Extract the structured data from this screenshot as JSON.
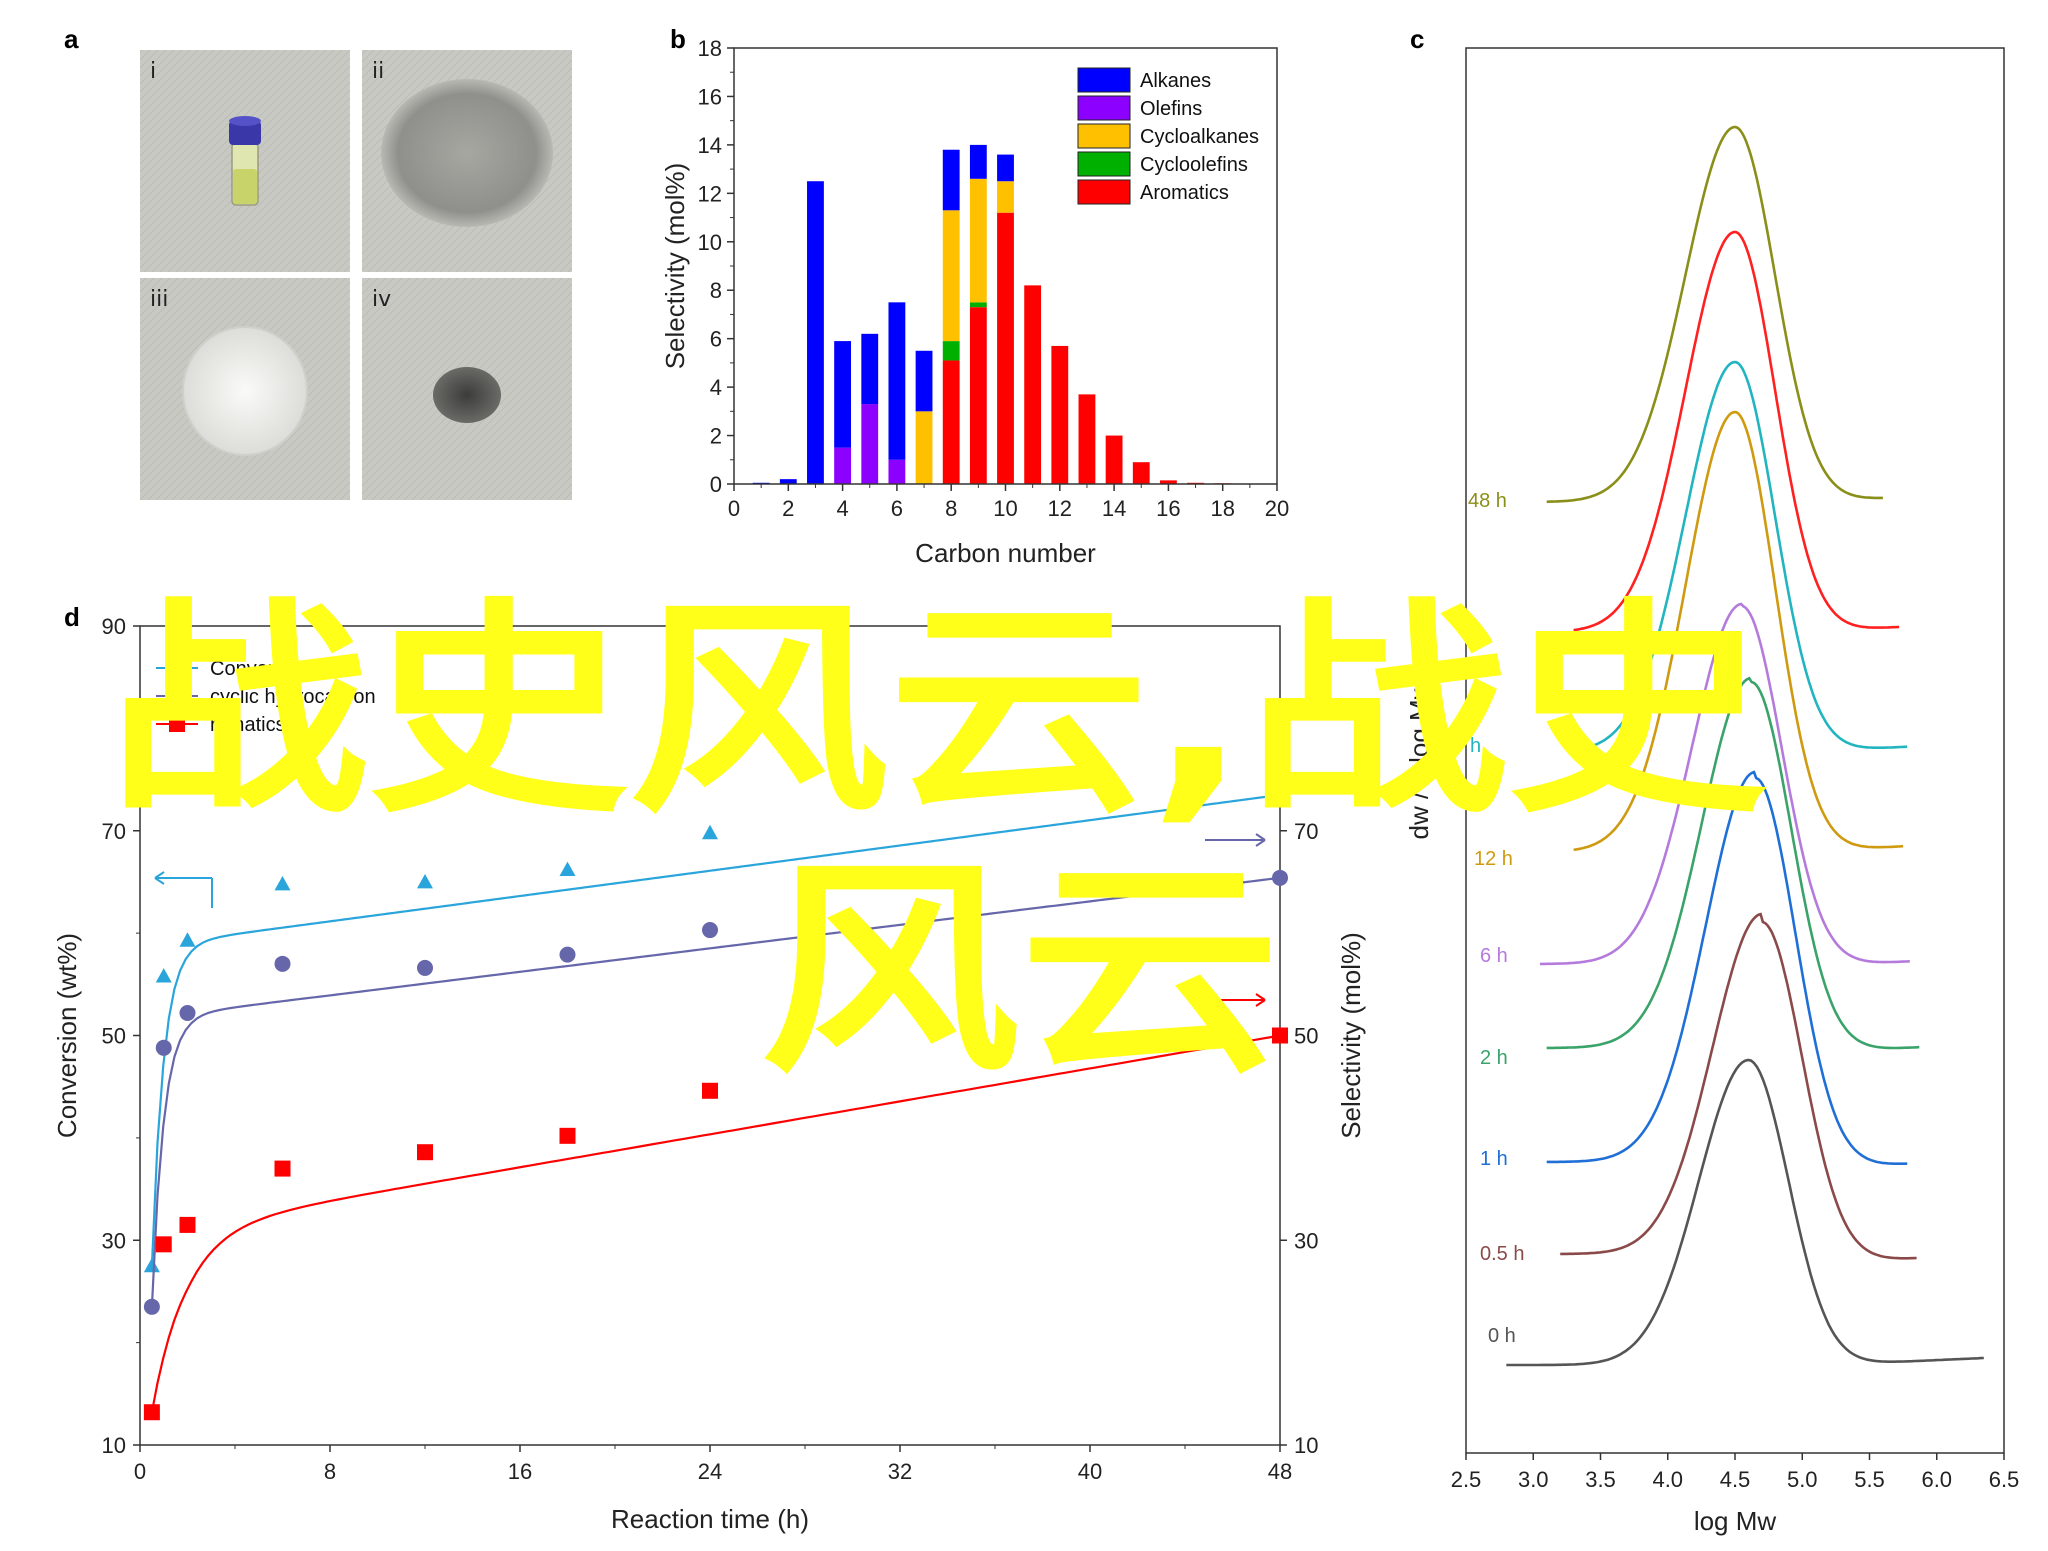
{
  "panels": {
    "a": {
      "letter": "a",
      "photos": [
        {
          "label": "i",
          "subject": "vial-with-yellow-liquid"
        },
        {
          "label": "ii",
          "subject": "grey-powder"
        },
        {
          "label": "iii",
          "subject": "white-pellet"
        },
        {
          "label": "iv",
          "subject": "dark-powder"
        }
      ]
    },
    "b": {
      "letter": "b"
    },
    "c": {
      "letter": "c"
    },
    "d": {
      "letter": "d"
    }
  },
  "watermark": {
    "line1": "战史风云,战史",
    "line2": "风云",
    "color": "#ffff1a"
  },
  "chart_data": [
    {
      "panel": "b",
      "type": "bar",
      "stacked": true,
      "xlabel": "Carbon number",
      "ylabel": "Selectivity (mol%)",
      "xlim": [
        0,
        20
      ],
      "ylim": [
        0,
        18
      ],
      "xticks": [
        0,
        2,
        4,
        6,
        8,
        10,
        12,
        14,
        16,
        18,
        20
      ],
      "yticks": [
        0,
        2,
        4,
        6,
        8,
        10,
        12,
        14,
        16,
        18
      ],
      "legend_position": "top-right",
      "categories": [
        1,
        2,
        3,
        4,
        5,
        6,
        7,
        8,
        9,
        10,
        11,
        12,
        13,
        14,
        15,
        16,
        17,
        18,
        19
      ],
      "series": [
        {
          "name": "Aromatics",
          "color": "#ff0000",
          "values": [
            0,
            0,
            0,
            0,
            0,
            0,
            0,
            5.1,
            7.3,
            11.2,
            8.2,
            5.7,
            3.7,
            2.0,
            0.9,
            0.15,
            0.05,
            0.03,
            0.02
          ]
        },
        {
          "name": "Cycloolefins",
          "color": "#00b000",
          "values": [
            0,
            0,
            0,
            0,
            0,
            0,
            0,
            0.8,
            0.2,
            0,
            0,
            0,
            0,
            0,
            0,
            0,
            0,
            0,
            0
          ]
        },
        {
          "name": "Cycloalkanes",
          "color": "#ffc000",
          "values": [
            0,
            0,
            0,
            0,
            0,
            0,
            3.0,
            5.4,
            5.1,
            1.3,
            0,
            0,
            0,
            0,
            0,
            0,
            0,
            0,
            0
          ]
        },
        {
          "name": "Olefins",
          "color": "#8b00ff",
          "values": [
            0,
            0,
            0,
            1.5,
            3.3,
            1.0,
            0,
            0,
            0,
            0,
            0,
            0,
            0,
            0,
            0,
            0,
            0,
            0,
            0
          ]
        },
        {
          "name": "Alkanes",
          "color": "#0000ff",
          "values": [
            0.05,
            0.2,
            12.5,
            4.4,
            2.9,
            6.5,
            2.5,
            2.5,
            1.4,
            1.1,
            0,
            0,
            0,
            0,
            0,
            0,
            0,
            0,
            0
          ]
        }
      ],
      "legend_order": [
        "Alkanes",
        "Olefins",
        "Cycloalkanes",
        "Cycloolefins",
        "Aromatics"
      ]
    },
    {
      "panel": "c",
      "type": "line",
      "xlabel": "log Mw",
      "ylabel": "dw / d log Mw",
      "xlim": [
        2.5,
        6.5
      ],
      "xticks": [
        "2.5",
        "3.0",
        "3.5",
        "4.0",
        "4.5",
        "5.0",
        "5.5",
        "6.0",
        "6.5"
      ],
      "series": [
        {
          "name": "0 h",
          "color": "#555555",
          "xrange": [
            2.8,
            6.35
          ],
          "peak": 4.6,
          "base_left": 0.0,
          "base_right": 0.0
        },
        {
          "name": "0.5 h",
          "color": "#8b4a4a",
          "xrange": [
            3.2,
            5.85
          ],
          "peak": 4.7,
          "base_left": 0.2,
          "base_right": 0.2
        },
        {
          "name": "1 h",
          "color": "#1f6fd6",
          "xrange": [
            3.1,
            5.78
          ],
          "peak": 4.65,
          "base_left": 0.15,
          "base_right": 0.05
        },
        {
          "name": "2 h",
          "color": "#3aa36a",
          "xrange": [
            3.1,
            5.87
          ],
          "peak": 4.62,
          "base_left": 0.1,
          "base_right": 0.05
        },
        {
          "name": "6 h",
          "color": "#b57bdc",
          "xrange": [
            3.05,
            5.8
          ],
          "peak": 4.55,
          "base_left": 0.05,
          "base_right": 0.05
        },
        {
          "name": "12 h",
          "color": "#d09a10",
          "xrange": [
            3.3,
            5.75
          ],
          "peak": 4.5,
          "base_left": 0.0,
          "base_right": 0.0
        },
        {
          "name": "24 h",
          "color": "#22b5c0",
          "xrange": [
            3.3,
            5.78
          ],
          "peak": 4.5,
          "base_left": 0.0,
          "base_right": 0.0
        },
        {
          "name": "36 h",
          "color": "#ff2020",
          "xrange": [
            3.3,
            5.72
          ],
          "peak": 4.5,
          "base_left": 0.0,
          "base_right": 0.0
        },
        {
          "name": "48 h",
          "color": "#8a8f1a",
          "xrange": [
            3.1,
            5.6
          ],
          "peak": 4.5,
          "base_left": 0.0,
          "base_right": 0.0
        }
      ],
      "visible_labels": [
        "48 h",
        "h",
        "h",
        "12 h",
        "6 h",
        "2 h",
        "1 h",
        "0.5 h",
        "0 h"
      ]
    },
    {
      "panel": "d",
      "type": "scatter",
      "xlabel": "Reaction time (h)",
      "ylabel_left": "Conversion (wt%)",
      "ylabel_right": "Selectivity (mol%)",
      "xlim": [
        0,
        48
      ],
      "ylim": [
        10,
        90
      ],
      "xticks": [
        0,
        8,
        16,
        24,
        32,
        40,
        48
      ],
      "yticks_left": [
        10,
        30,
        50,
        70,
        90
      ],
      "yticks_right": [
        10,
        30,
        50,
        70
      ],
      "legend_position": "top-left",
      "legend_visible_text": [
        "Conversion",
        "cyclic hydrocarbon",
        "romatics"
      ],
      "series": [
        {
          "name": "Conversion",
          "color": "#2aa5dc",
          "marker": "triangle",
          "x": [
            0.5,
            1,
            2,
            6,
            12,
            18,
            24,
            48
          ],
          "y": [
            27.5,
            55.8,
            59.3,
            64.8,
            65.0,
            66.2,
            69.8,
            73.5
          ]
        },
        {
          "name": "Cyclic hydrocarbon",
          "color": "#6666aa",
          "marker": "circle",
          "x": [
            0.5,
            1,
            2,
            6,
            12,
            18,
            24,
            48
          ],
          "y": [
            23.5,
            48.8,
            52.2,
            57.0,
            56.6,
            57.9,
            60.3,
            65.4
          ]
        },
        {
          "name": "Aromatics",
          "color": "#ff0000",
          "marker": "square",
          "x": [
            0.5,
            1,
            2,
            6,
            12,
            18,
            24,
            48
          ],
          "y": [
            13.2,
            29.6,
            31.5,
            37.0,
            38.6,
            40.2,
            44.6,
            50.0
          ]
        }
      ]
    }
  ]
}
